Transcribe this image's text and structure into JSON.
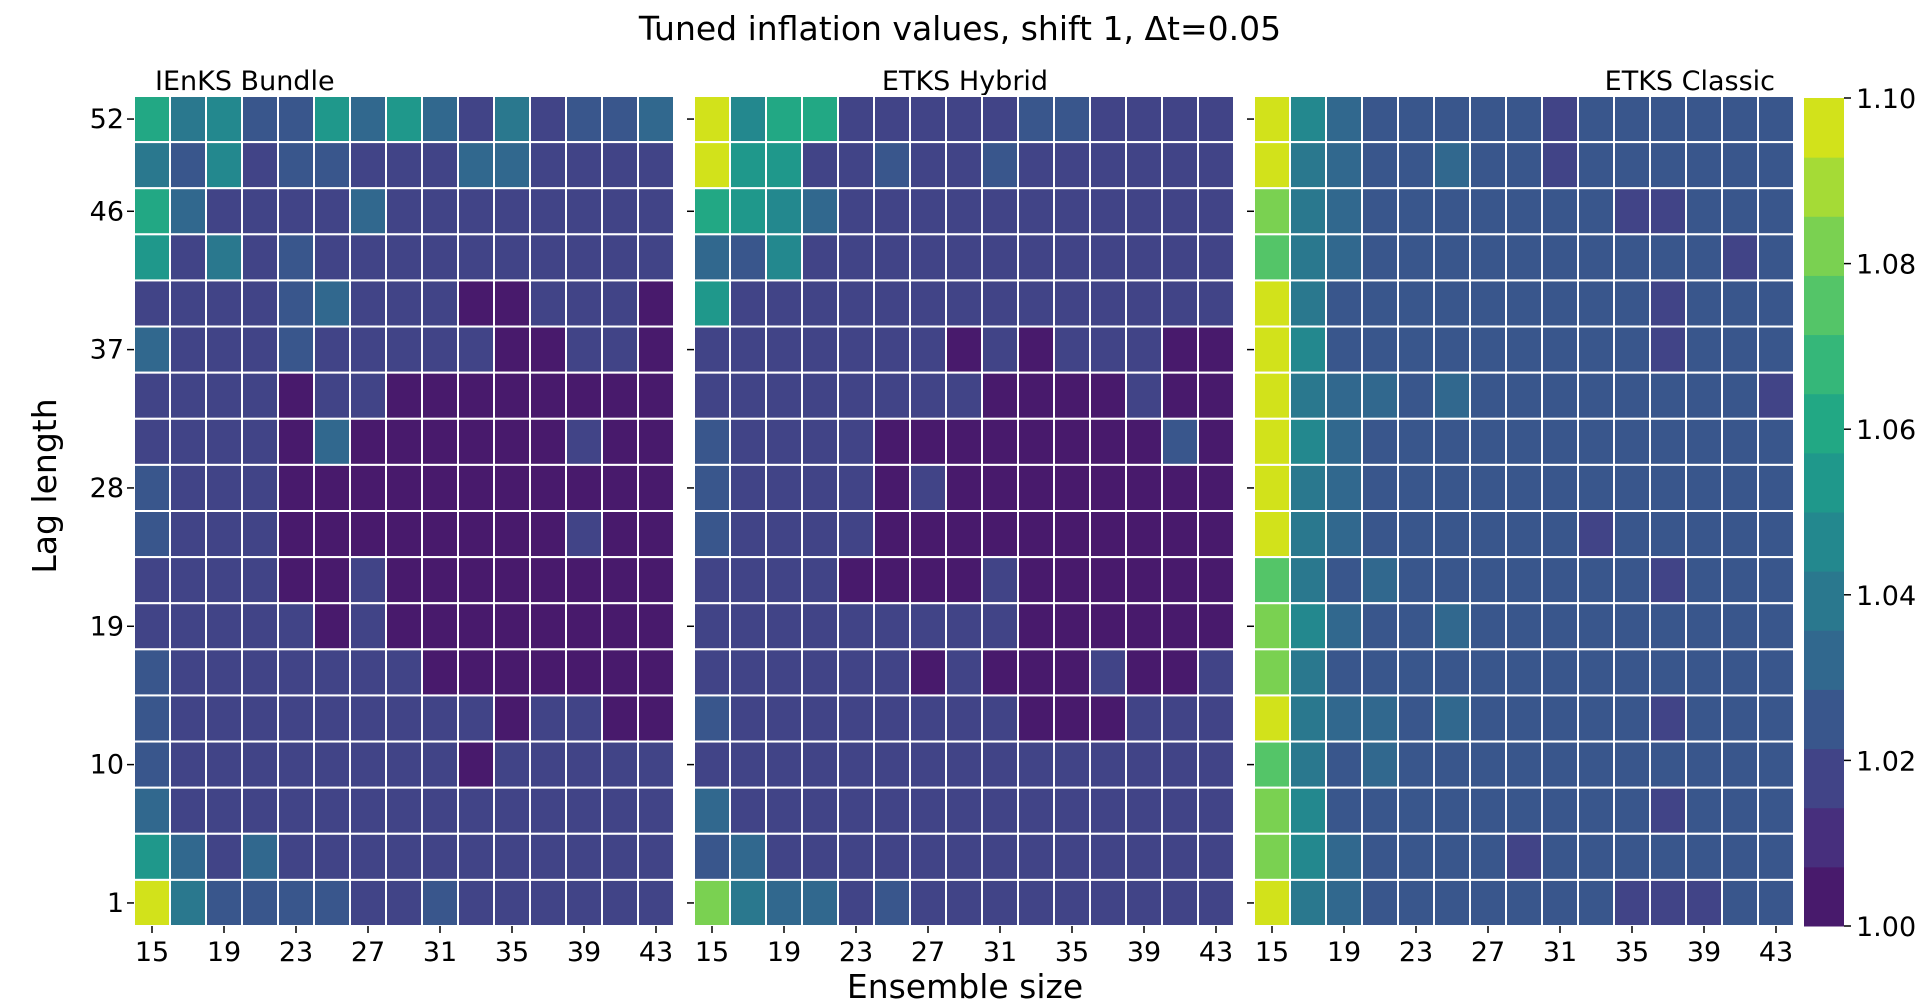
{
  "chart_data": {
    "type": "heatmap",
    "title": "Tuned inflation values, shift 1, Δt=0.05",
    "xlabel": "Ensemble size",
    "ylabel": "Lag length",
    "x": [
      15,
      17,
      19,
      21,
      23,
      25,
      27,
      29,
      31,
      33,
      35,
      37,
      39,
      41,
      43
    ],
    "x_ticks": [
      15,
      19,
      23,
      27,
      31,
      35,
      39,
      43
    ],
    "y": [
      1,
      4,
      7,
      10,
      13,
      16,
      19,
      22,
      25,
      28,
      31,
      34,
      37,
      40,
      43,
      46,
      49,
      52
    ],
    "y_ticks": [
      1,
      10,
      19,
      28,
      37,
      46,
      52
    ],
    "colorbar": {
      "range": [
        1.0,
        1.1
      ],
      "ticks": [
        "1.00",
        "1.02",
        "1.04",
        "1.06",
        "1.08",
        "1.10"
      ],
      "levels": 11,
      "colormap": [
        "#440154",
        "#482475",
        "#414487",
        "#355f8d",
        "#2a788e",
        "#21918c",
        "#22a884",
        "#44bf70",
        "#7ad151",
        "#bddf26",
        "#fde725"
      ],
      "rendered_colors": [
        "#481a6c",
        "#472f7d",
        "#414487",
        "#39568c",
        "#31688e",
        "#2a788e",
        "#23888e",
        "#1f988b",
        "#22a884",
        "#35b779",
        "#54c568",
        "#7ad151",
        "#a5db36",
        "#d2e21b"
      ]
    },
    "panels": [
      {
        "title": "IEnKS Bundle",
        "values_top_to_bottom": [
          [
            1.064,
            1.04,
            1.046,
            1.024,
            1.024,
            1.055,
            1.03,
            1.05,
            1.03,
            1.016,
            1.04,
            1.016,
            1.024,
            1.024,
            1.03
          ],
          [
            1.04,
            1.024,
            1.046,
            1.016,
            1.024,
            1.024,
            1.016,
            1.016,
            1.016,
            1.03,
            1.03,
            1.016,
            1.016,
            1.016,
            1.016
          ],
          [
            1.064,
            1.03,
            1.016,
            1.016,
            1.016,
            1.016,
            1.03,
            1.016,
            1.016,
            1.016,
            1.016,
            1.016,
            1.016,
            1.016,
            1.016
          ],
          [
            1.055,
            1.016,
            1.04,
            1.016,
            1.024,
            1.016,
            1.016,
            1.016,
            1.016,
            1.016,
            1.016,
            1.016,
            1.016,
            1.016,
            1.016
          ],
          [
            1.016,
            1.016,
            1.016,
            1.016,
            1.024,
            1.03,
            1.016,
            1.016,
            1.016,
            1.004,
            1.004,
            1.016,
            1.016,
            1.016,
            1.004
          ],
          [
            1.03,
            1.016,
            1.016,
            1.016,
            1.024,
            1.016,
            1.016,
            1.016,
            1.016,
            1.016,
            1.004,
            1.004,
            1.016,
            1.016,
            1.004
          ],
          [
            1.016,
            1.016,
            1.016,
            1.016,
            1.004,
            1.016,
            1.016,
            1.004,
            1.004,
            1.004,
            1.004,
            1.004,
            1.004,
            1.004,
            1.004
          ],
          [
            1.016,
            1.016,
            1.016,
            1.016,
            1.004,
            1.03,
            1.004,
            1.004,
            1.004,
            1.004,
            1.004,
            1.004,
            1.016,
            1.004,
            1.004
          ],
          [
            1.024,
            1.016,
            1.016,
            1.016,
            1.004,
            1.004,
            1.004,
            1.004,
            1.004,
            1.004,
            1.004,
            1.004,
            1.004,
            1.004,
            1.004
          ],
          [
            1.024,
            1.016,
            1.016,
            1.016,
            1.004,
            1.004,
            1.004,
            1.004,
            1.004,
            1.004,
            1.004,
            1.004,
            1.016,
            1.004,
            1.004
          ],
          [
            1.016,
            1.016,
            1.016,
            1.016,
            1.004,
            1.004,
            1.016,
            1.004,
            1.004,
            1.004,
            1.004,
            1.004,
            1.004,
            1.004,
            1.004
          ],
          [
            1.016,
            1.016,
            1.016,
            1.016,
            1.016,
            1.004,
            1.016,
            1.004,
            1.004,
            1.004,
            1.004,
            1.004,
            1.004,
            1.004,
            1.004
          ],
          [
            1.024,
            1.016,
            1.016,
            1.016,
            1.016,
            1.016,
            1.016,
            1.016,
            1.004,
            1.004,
            1.004,
            1.004,
            1.004,
            1.004,
            1.004
          ],
          [
            1.024,
            1.016,
            1.016,
            1.016,
            1.016,
            1.016,
            1.016,
            1.016,
            1.016,
            1.016,
            1.004,
            1.016,
            1.016,
            1.004,
            1.004
          ],
          [
            1.024,
            1.016,
            1.016,
            1.016,
            1.016,
            1.016,
            1.016,
            1.016,
            1.016,
            1.004,
            1.016,
            1.016,
            1.016,
            1.016,
            1.016
          ],
          [
            1.03,
            1.016,
            1.016,
            1.016,
            1.016,
            1.016,
            1.016,
            1.016,
            1.016,
            1.016,
            1.016,
            1.016,
            1.016,
            1.016,
            1.016
          ],
          [
            1.055,
            1.03,
            1.016,
            1.03,
            1.016,
            1.016,
            1.016,
            1.016,
            1.016,
            1.016,
            1.016,
            1.016,
            1.016,
            1.016,
            1.016
          ],
          [
            1.095,
            1.04,
            1.024,
            1.024,
            1.024,
            1.024,
            1.016,
            1.016,
            1.024,
            1.016,
            1.016,
            1.016,
            1.016,
            1.016,
            1.016
          ]
        ]
      },
      {
        "title": "ETKS Hybrid",
        "values_top_to_bottom": [
          [
            1.095,
            1.046,
            1.064,
            1.064,
            1.016,
            1.016,
            1.016,
            1.016,
            1.016,
            1.024,
            1.024,
            1.016,
            1.016,
            1.016,
            1.016
          ],
          [
            1.095,
            1.055,
            1.055,
            1.016,
            1.016,
            1.024,
            1.016,
            1.016,
            1.024,
            1.016,
            1.016,
            1.016,
            1.016,
            1.016,
            1.016
          ],
          [
            1.064,
            1.055,
            1.046,
            1.03,
            1.016,
            1.016,
            1.016,
            1.016,
            1.016,
            1.016,
            1.016,
            1.016,
            1.016,
            1.016,
            1.016
          ],
          [
            1.03,
            1.024,
            1.046,
            1.016,
            1.016,
            1.016,
            1.016,
            1.016,
            1.016,
            1.016,
            1.016,
            1.016,
            1.016,
            1.016,
            1.016
          ],
          [
            1.055,
            1.016,
            1.016,
            1.016,
            1.016,
            1.016,
            1.016,
            1.016,
            1.016,
            1.016,
            1.016,
            1.016,
            1.016,
            1.016,
            1.016
          ],
          [
            1.016,
            1.016,
            1.016,
            1.016,
            1.016,
            1.016,
            1.016,
            1.004,
            1.016,
            1.004,
            1.016,
            1.016,
            1.016,
            1.004,
            1.004
          ],
          [
            1.016,
            1.016,
            1.016,
            1.016,
            1.016,
            1.016,
            1.016,
            1.016,
            1.004,
            1.004,
            1.004,
            1.004,
            1.016,
            1.004,
            1.004
          ],
          [
            1.024,
            1.016,
            1.016,
            1.016,
            1.016,
            1.004,
            1.004,
            1.004,
            1.004,
            1.004,
            1.004,
            1.004,
            1.004,
            1.024,
            1.004
          ],
          [
            1.024,
            1.016,
            1.016,
            1.016,
            1.016,
            1.004,
            1.016,
            1.004,
            1.004,
            1.004,
            1.004,
            1.004,
            1.004,
            1.004,
            1.004
          ],
          [
            1.024,
            1.016,
            1.016,
            1.016,
            1.016,
            1.004,
            1.004,
            1.004,
            1.004,
            1.004,
            1.004,
            1.004,
            1.004,
            1.004,
            1.004
          ],
          [
            1.016,
            1.016,
            1.016,
            1.016,
            1.004,
            1.004,
            1.004,
            1.004,
            1.016,
            1.004,
            1.004,
            1.004,
            1.004,
            1.004,
            1.004
          ],
          [
            1.016,
            1.016,
            1.016,
            1.016,
            1.016,
            1.016,
            1.016,
            1.016,
            1.016,
            1.004,
            1.004,
            1.004,
            1.004,
            1.004,
            1.004
          ],
          [
            1.016,
            1.016,
            1.016,
            1.016,
            1.016,
            1.016,
            1.004,
            1.016,
            1.004,
            1.004,
            1.004,
            1.016,
            1.004,
            1.004,
            1.016
          ],
          [
            1.024,
            1.016,
            1.016,
            1.016,
            1.016,
            1.016,
            1.016,
            1.016,
            1.016,
            1.004,
            1.004,
            1.004,
            1.016,
            1.016,
            1.016
          ],
          [
            1.016,
            1.016,
            1.016,
            1.016,
            1.016,
            1.016,
            1.016,
            1.016,
            1.016,
            1.016,
            1.016,
            1.016,
            1.016,
            1.016,
            1.016
          ],
          [
            1.03,
            1.016,
            1.016,
            1.016,
            1.016,
            1.016,
            1.016,
            1.016,
            1.016,
            1.016,
            1.016,
            1.016,
            1.016,
            1.016,
            1.016
          ],
          [
            1.024,
            1.03,
            1.016,
            1.016,
            1.016,
            1.016,
            1.016,
            1.016,
            1.016,
            1.016,
            1.016,
            1.016,
            1.016,
            1.016,
            1.016
          ],
          [
            1.082,
            1.04,
            1.03,
            1.03,
            1.016,
            1.024,
            1.016,
            1.016,
            1.016,
            1.016,
            1.016,
            1.016,
            1.016,
            1.016,
            1.016
          ]
        ]
      },
      {
        "title": "ETKS Classic",
        "values_top_to_bottom": [
          [
            1.095,
            1.046,
            1.03,
            1.024,
            1.024,
            1.024,
            1.024,
            1.024,
            1.016,
            1.024,
            1.024,
            1.024,
            1.024,
            1.024,
            1.024
          ],
          [
            1.095,
            1.04,
            1.03,
            1.024,
            1.024,
            1.03,
            1.024,
            1.024,
            1.016,
            1.024,
            1.024,
            1.024,
            1.024,
            1.024,
            1.024
          ],
          [
            1.082,
            1.04,
            1.03,
            1.024,
            1.024,
            1.024,
            1.024,
            1.024,
            1.024,
            1.024,
            1.016,
            1.016,
            1.024,
            1.024,
            1.024
          ],
          [
            1.074,
            1.04,
            1.03,
            1.024,
            1.024,
            1.024,
            1.024,
            1.024,
            1.024,
            1.024,
            1.024,
            1.024,
            1.024,
            1.016,
            1.024
          ],
          [
            1.095,
            1.04,
            1.024,
            1.024,
            1.024,
            1.024,
            1.024,
            1.024,
            1.024,
            1.024,
            1.024,
            1.016,
            1.024,
            1.024,
            1.024
          ],
          [
            1.095,
            1.046,
            1.024,
            1.024,
            1.024,
            1.024,
            1.024,
            1.024,
            1.024,
            1.024,
            1.024,
            1.016,
            1.024,
            1.024,
            1.024
          ],
          [
            1.095,
            1.04,
            1.03,
            1.03,
            1.024,
            1.03,
            1.024,
            1.024,
            1.024,
            1.024,
            1.024,
            1.024,
            1.024,
            1.024,
            1.016
          ],
          [
            1.095,
            1.046,
            1.03,
            1.024,
            1.024,
            1.024,
            1.024,
            1.024,
            1.024,
            1.024,
            1.024,
            1.024,
            1.024,
            1.024,
            1.024
          ],
          [
            1.095,
            1.04,
            1.03,
            1.024,
            1.024,
            1.024,
            1.024,
            1.024,
            1.024,
            1.024,
            1.024,
            1.024,
            1.024,
            1.024,
            1.024
          ],
          [
            1.095,
            1.04,
            1.03,
            1.024,
            1.024,
            1.024,
            1.024,
            1.024,
            1.024,
            1.016,
            1.024,
            1.024,
            1.024,
            1.024,
            1.024
          ],
          [
            1.074,
            1.04,
            1.024,
            1.03,
            1.024,
            1.024,
            1.024,
            1.024,
            1.024,
            1.024,
            1.024,
            1.016,
            1.024,
            1.024,
            1.024
          ],
          [
            1.082,
            1.046,
            1.03,
            1.024,
            1.024,
            1.03,
            1.024,
            1.024,
            1.024,
            1.024,
            1.024,
            1.024,
            1.024,
            1.024,
            1.024
          ],
          [
            1.082,
            1.04,
            1.024,
            1.024,
            1.024,
            1.024,
            1.024,
            1.024,
            1.024,
            1.024,
            1.024,
            1.024,
            1.024,
            1.024,
            1.024
          ],
          [
            1.095,
            1.04,
            1.03,
            1.03,
            1.024,
            1.03,
            1.024,
            1.024,
            1.024,
            1.024,
            1.024,
            1.016,
            1.024,
            1.024,
            1.024
          ],
          [
            1.074,
            1.04,
            1.024,
            1.03,
            1.024,
            1.024,
            1.024,
            1.024,
            1.024,
            1.024,
            1.024,
            1.024,
            1.024,
            1.024,
            1.024
          ],
          [
            1.082,
            1.046,
            1.024,
            1.024,
            1.024,
            1.024,
            1.024,
            1.024,
            1.024,
            1.024,
            1.024,
            1.016,
            1.024,
            1.024,
            1.024
          ],
          [
            1.082,
            1.046,
            1.03,
            1.024,
            1.024,
            1.024,
            1.024,
            1.016,
            1.024,
            1.024,
            1.024,
            1.024,
            1.024,
            1.024,
            1.024
          ],
          [
            1.095,
            1.04,
            1.03,
            1.024,
            1.024,
            1.024,
            1.024,
            1.024,
            1.024,
            1.024,
            1.016,
            1.016,
            1.016,
            1.024,
            1.024
          ]
        ]
      }
    ]
  }
}
